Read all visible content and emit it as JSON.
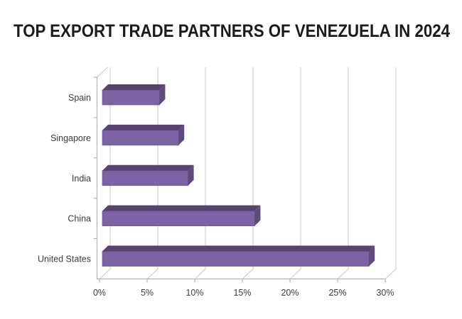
{
  "title": "TOP EXPORT TRADE PARTNERS OF VENEZUELA IN 2024",
  "chart_data": {
    "type": "bar",
    "orientation": "horizontal",
    "style": "3d",
    "title": "TOP EXPORT TRADE PARTNERS OF VENEZUELA IN 2024",
    "categories": [
      "Spain",
      "Singapore",
      "India",
      "China",
      "United States"
    ],
    "values": [
      6,
      8,
      9,
      16,
      28
    ],
    "unit": "%",
    "xlabel": "",
    "ylabel": "",
    "x_ticks": [
      "0%",
      "5%",
      "10%",
      "15%",
      "20%",
      "25%",
      "30%"
    ],
    "x_tick_values": [
      0,
      5,
      10,
      15,
      20,
      25,
      30
    ],
    "xlim": [
      0,
      30
    ],
    "grid": true,
    "legend": false
  },
  "colors": {
    "bar_face": "#7c63a6",
    "bar_top": "#58436f",
    "bar_side": "#5e4a7c",
    "bar_edge": "#6d559a",
    "gridline": "#c8c8c8",
    "axis": "#a9a9a9",
    "label_text": "#3d3d3d",
    "title_text": "#1a1a1a",
    "background": "#ffffff"
  }
}
